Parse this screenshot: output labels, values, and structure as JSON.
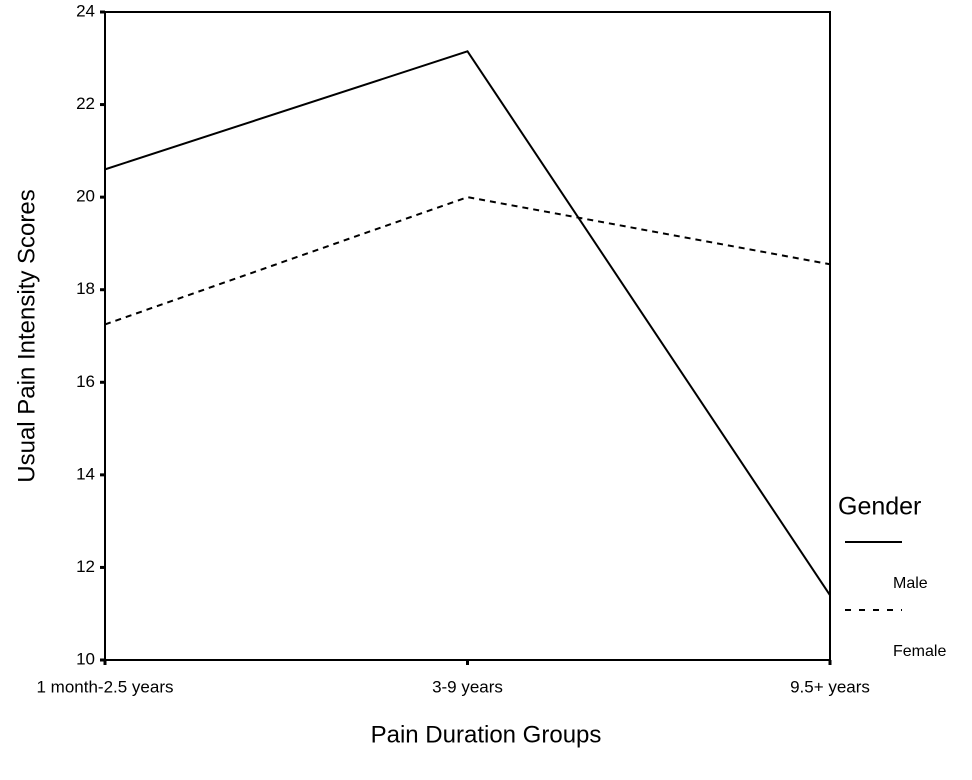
{
  "chart_data": {
    "type": "line",
    "xlabel": "Pain Duration Groups",
    "ylabel": "Usual Pain Intensity Scores",
    "categories": [
      "1 month-2.5 years",
      "3-9 years",
      "9.5+ years"
    ],
    "series": [
      {
        "name": "Male",
        "color": "#000000",
        "dash": "solid",
        "values": [
          20.6,
          23.15,
          11.4
        ]
      },
      {
        "name": "Female",
        "color": "#000000",
        "dash": "dashed",
        "values": [
          17.25,
          20.0,
          18.55
        ]
      }
    ],
    "ylim": [
      10,
      24
    ],
    "yticks": [
      10,
      12,
      14,
      16,
      18,
      20,
      22,
      24
    ],
    "grid": false,
    "legend_title": "Gender",
    "legend": "right"
  }
}
